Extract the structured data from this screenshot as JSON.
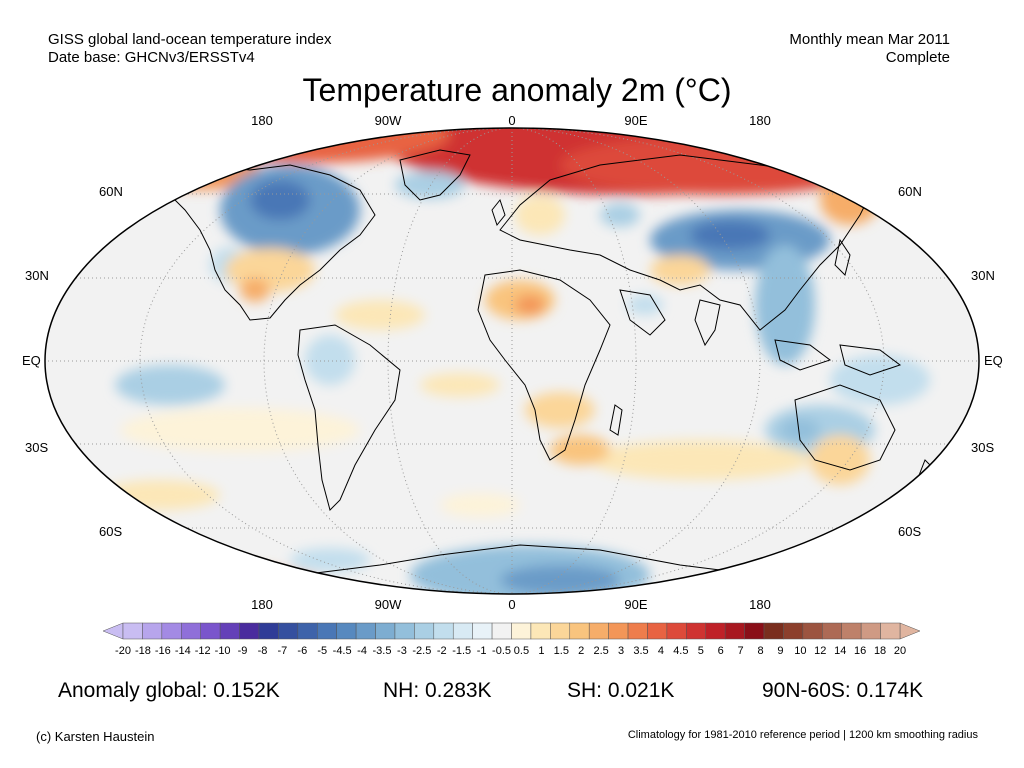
{
  "header": {
    "left_line1": "GISS global land-ocean temperature index",
    "left_line2": "Date base: GHCNv3/ERSSTv4",
    "right_line1": "Monthly mean Mar 2011",
    "right_line2": "Complete"
  },
  "title": "Temperature anomaly 2m (°C)",
  "longitude_labels": [
    "180",
    "90W",
    "0",
    "90E",
    "180"
  ],
  "latitude_labels_left": [
    "60N",
    "30N",
    "EQ",
    "30S",
    "60S"
  ],
  "latitude_labels_right": [
    "60N",
    "30N",
    "EQ",
    "30S",
    "60S"
  ],
  "colorbar": {
    "ticks": [
      "-20",
      "-18",
      "-16",
      "-14",
      "-12",
      "-10",
      "-9",
      "-8",
      "-7",
      "-6",
      "-5",
      "-4.5",
      "-4",
      "-3.5",
      "-3",
      "-2.5",
      "-2",
      "-1.5",
      "-1",
      "-0.5",
      "0.5",
      "1",
      "1.5",
      "2",
      "2.5",
      "3",
      "3.5",
      "4",
      "4.5",
      "5",
      "6",
      "7",
      "8",
      "9",
      "10",
      "12",
      "14",
      "16",
      "18",
      "20"
    ],
    "colors": [
      "#c9bdf2",
      "#b7a5ec",
      "#a38ae4",
      "#8f6fd9",
      "#7a55cc",
      "#6440b8",
      "#4a2c9e",
      "#2f3c97",
      "#35509f",
      "#3e63aa",
      "#4a77b6",
      "#5789bf",
      "#6a9bc8",
      "#7dadd1",
      "#93bfdb",
      "#aacfe4",
      "#c2deed",
      "#d8eaf4",
      "#e8f2f8",
      "#f2f2f2",
      "#fdf3d9",
      "#fce7b7",
      "#fbd699",
      "#f9c47e",
      "#f6ad69",
      "#f39658",
      "#ee7d4c",
      "#e86342",
      "#dd4a3a",
      "#cf3331",
      "#bf2128",
      "#a81820",
      "#8a0f18",
      "#7a2e1e",
      "#8c3f2c",
      "#9c5440",
      "#ad6a55",
      "#be816a",
      "#cf9a84",
      "#e0b5a0"
    ]
  },
  "stats": {
    "global": "Anomaly global: 0.152K",
    "nh": "NH: 0.283K",
    "sh": "SH: 0.021K",
    "polar": "90N-60S: 0.174K"
  },
  "footer": {
    "left": "(c) Karsten Haustein",
    "right": "Climatology for 1981-2010 reference period | 1200 km smoothing radius"
  }
}
